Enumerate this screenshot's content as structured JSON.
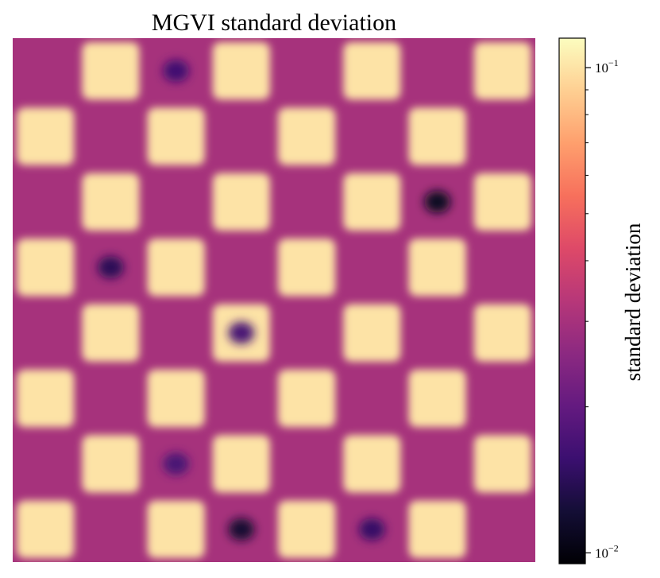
{
  "chart_data": {
    "type": "heatmap",
    "title": "MGVI standard deviation",
    "colormap": "magma",
    "colorbar": {
      "label": "standard deviation",
      "scale": "log",
      "range": [
        0.0095,
        0.115
      ],
      "ticks": [
        {
          "value": 0.1,
          "label_base": "10",
          "label_exp": "−1"
        },
        {
          "value": 0.01,
          "label_base": "10",
          "label_exp": "−2"
        }
      ],
      "minor_ticks": [
        0.02,
        0.03,
        0.04,
        0.05,
        0.06,
        0.07,
        0.08,
        0.09
      ]
    },
    "grid": {
      "rows": 8,
      "cols": 8
    },
    "pattern": "checkerboard",
    "high_value": 0.1,
    "low_value": 0.03,
    "low_spots": [
      {
        "row": 0,
        "col": 2,
        "value": 0.016
      },
      {
        "row": 2,
        "col": 6,
        "value": 0.011
      },
      {
        "row": 3,
        "col": 1,
        "value": 0.014
      },
      {
        "row": 4,
        "col": 3,
        "value": 0.017
      },
      {
        "row": 6,
        "col": 2,
        "value": 0.017
      },
      {
        "row": 7,
        "col": 3,
        "value": 0.012
      },
      {
        "row": 7,
        "col": 5,
        "value": 0.015
      }
    ]
  }
}
